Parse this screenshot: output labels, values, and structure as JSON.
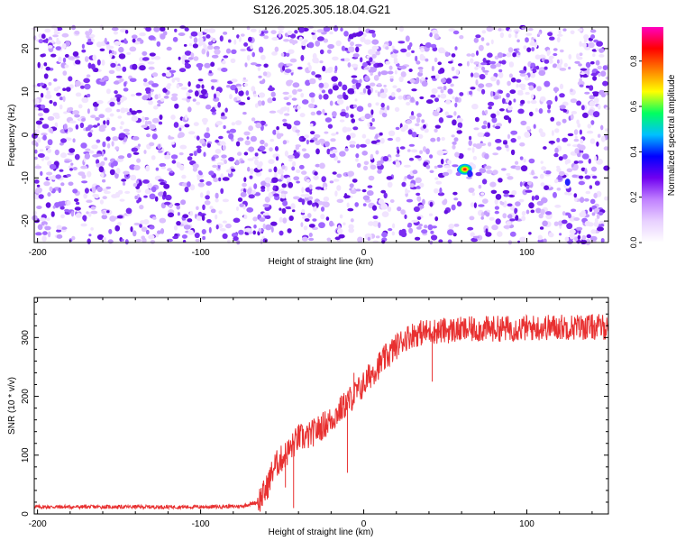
{
  "title": "S126.2025.305.18.04.G21",
  "chart_data": [
    {
      "type": "heatmap",
      "name": "spectrogram",
      "xlabel": "Height of straight line (km)",
      "ylabel": "Frequency (Hz)",
      "xlim": [
        -202,
        150
      ],
      "ylim": [
        -25,
        25
      ],
      "xticks": [
        -200,
        -100,
        0,
        100
      ],
      "yticks": [
        -20,
        -10,
        0,
        10,
        20
      ],
      "colorbar": {
        "label": "Normalized spectral amplitude",
        "range": [
          0,
          0.95
        ],
        "ticks": [
          "0.0",
          "0.2",
          "0.4",
          "0.6",
          "0.8"
        ],
        "tick_values": [
          0,
          0.2,
          0.4,
          0.6,
          0.8
        ],
        "colors": [
          "#ffffff",
          "#e8d0ff",
          "#c080ff",
          "#7000f0",
          "#0000ff",
          "#00c0ff",
          "#00ff60",
          "#ffff00",
          "#ff8000",
          "#ff0000",
          "#ff00c0"
        ]
      },
      "background_speckle": {
        "amplitude_range": [
          0.02,
          0.15
        ],
        "dominant_color": "#6f1fe6"
      },
      "data_gap_x": [
        60,
        64
      ],
      "hotspots": [
        {
          "x": 62,
          "y": -8,
          "amplitude": 0.9
        },
        {
          "x": 65,
          "y": -9,
          "amplitude": 0.3
        },
        {
          "x": 125,
          "y": -11,
          "amplitude": 0.2
        }
      ]
    },
    {
      "type": "line",
      "name": "snr",
      "xlabel": "Height of straight line (km)",
      "ylabel": "SNR (10 * v/v)",
      "xlim": [
        -202,
        150
      ],
      "ylim": [
        0,
        368
      ],
      "xticks": [
        -200,
        -100,
        0,
        100
      ],
      "yticks": [
        0,
        100,
        200,
        300
      ],
      "color": "#e83030",
      "series": [
        {
          "values_by_x": [
            [
              -202,
              12
            ],
            [
              -160,
              12
            ],
            [
              -140,
              12
            ],
            [
              -100,
              12
            ],
            [
              -75,
              13
            ],
            [
              -65,
              20
            ],
            [
              -60,
              40
            ],
            [
              -55,
              80
            ],
            [
              -50,
              95
            ],
            [
              -45,
              110
            ],
            [
              -40,
              130
            ],
            [
              -35,
              130
            ],
            [
              -30,
              140
            ],
            [
              -25,
              150
            ],
            [
              -20,
              160
            ],
            [
              -15,
              175
            ],
            [
              -10,
              190
            ],
            [
              -5,
              205
            ],
            [
              0,
              220
            ],
            [
              5,
              240
            ],
            [
              10,
              255
            ],
            [
              15,
              270
            ],
            [
              20,
              285
            ],
            [
              25,
              298
            ],
            [
              30,
              305
            ],
            [
              35,
              308
            ],
            [
              40,
              310
            ],
            [
              50,
              312
            ],
            [
              60,
              313
            ],
            [
              80,
              315
            ],
            [
              100,
              316
            ],
            [
              120,
              318
            ],
            [
              150,
              318
            ]
          ]
        }
      ],
      "noise_spikes": [
        {
          "x": -43,
          "value": 10
        },
        {
          "x": -48,
          "value": 45
        },
        {
          "x": -10,
          "value": 70
        },
        {
          "x": -6,
          "value": 240
        },
        {
          "x": 42,
          "value": 225
        }
      ]
    }
  ]
}
